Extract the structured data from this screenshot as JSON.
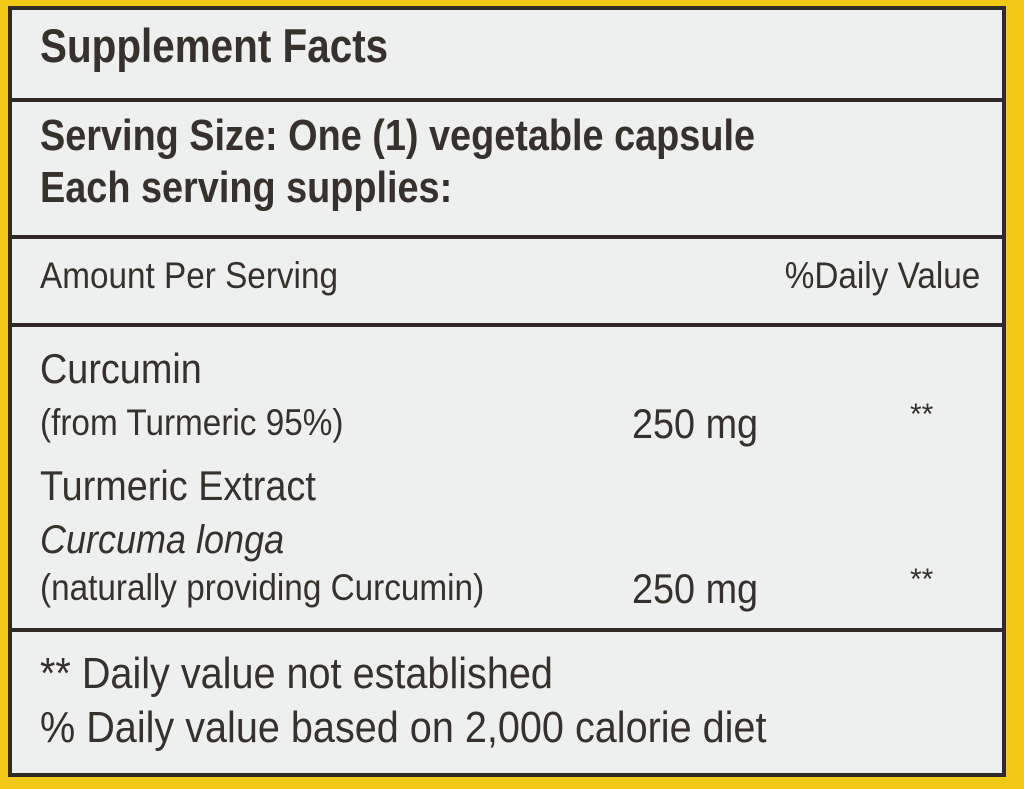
{
  "title": "Supplement Facts",
  "serving_size": "Serving Size: One (1) vegetable capsule",
  "servings_note": "Each serving supplies:",
  "header": {
    "amount": "Amount Per Serving",
    "daily_value": "%Daily Value"
  },
  "ingredients": [
    {
      "name": "Curcumin",
      "detail": "(from Turmeric 95%)",
      "amount": "250 mg",
      "dv": "**"
    },
    {
      "name": "Turmeric Extract",
      "latin": "Curcuma longa",
      "detail": "(naturally providing Curcumin)",
      "amount": "250 mg",
      "dv": "**"
    }
  ],
  "footnotes": [
    "** Daily value not established",
    "% Daily value based on 2,000 calorie diet"
  ],
  "colors": {
    "background": "#f2c816",
    "panel": "#eef0ef",
    "text": "#36312c"
  }
}
